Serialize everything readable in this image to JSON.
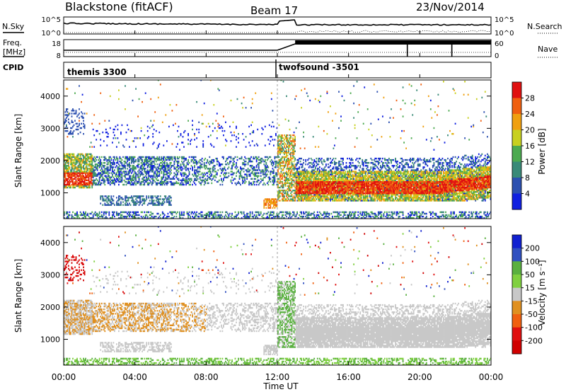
{
  "header": {
    "station": "Blackstone (fitACF)",
    "beam": "Beam 17",
    "date": "23/Nov/2014"
  },
  "noise_panel": {
    "left_label": "N.Sky",
    "right_label": "N.Search",
    "tick_top_left": "10^5",
    "tick_bottom_left": "10^0",
    "tick_top_right": "10^5",
    "tick_bottom_right": "10^0"
  },
  "freq_panel": {
    "left_label_line1": "Freq.",
    "left_label_line2": "[MHz]",
    "tick_top_left": "18",
    "tick_bottom_left": "8",
    "right_label": "Nave",
    "tick_top_right": "60",
    "tick_bottom_right": "0"
  },
  "cpid_panel": {
    "label": "CPID",
    "entries": [
      "themis 3300",
      "twofsound -3501"
    ]
  },
  "chart_data": [
    {
      "type": "heatmap",
      "name": "power",
      "ylabel": "Slant Range [km]",
      "yticks": [
        "1000",
        "2000",
        "3000",
        "4000"
      ],
      "ylim": [
        200,
        4500
      ],
      "xlim": [
        0,
        24
      ],
      "colorbar": {
        "label": "Power [dB]",
        "ticks": [
          "4",
          "8",
          "12",
          "16",
          "20",
          "24",
          "28"
        ],
        "colors": [
          "#1020e0",
          "#2c50b0",
          "#3a8a78",
          "#4caa50",
          "#c8d020",
          "#f0a010",
          "#f06010",
          "#e01010"
        ]
      }
    },
    {
      "type": "heatmap",
      "name": "velocity",
      "ylabel": "Slant Range [km]",
      "yticks": [
        "1000",
        "2000",
        "3000",
        "4000"
      ],
      "ylim": [
        200,
        4500
      ],
      "xlim": [
        0,
        24
      ],
      "colorbar": {
        "label": "Velocity [m s⁻¹]",
        "ticks": [
          "200",
          "100",
          "50",
          "15",
          "-15",
          "-50",
          "-100",
          "-200"
        ],
        "colors": [
          "#1020d0",
          "#3050c0",
          "#5ab040",
          "#80d040",
          "#c8c8c8",
          "#e09020",
          "#f06010",
          "#e01010",
          "#d00000"
        ]
      }
    }
  ],
  "x_axis": {
    "ticks": [
      "00:00",
      "04:00",
      "08:00",
      "12:00",
      "16:00",
      "20:00",
      "00:00"
    ],
    "label": "Time UT"
  }
}
